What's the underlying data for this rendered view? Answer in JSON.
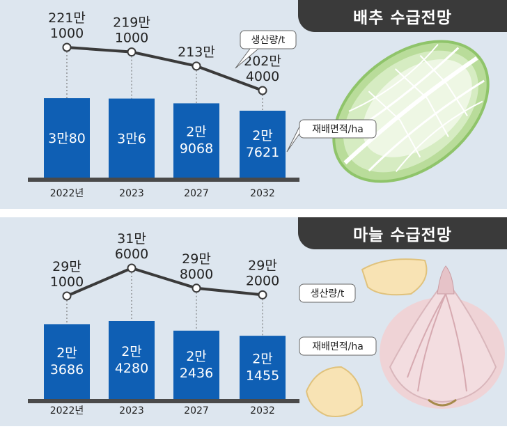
{
  "chart_data": [
    {
      "type": "bar",
      "title": "배추 수급전망",
      "categories": [
        "2022년",
        "2023",
        "2027",
        "2032"
      ],
      "series": [
        {
          "name": "재배면적/ha",
          "values": [
            30080,
            30006,
            29068,
            27621
          ],
          "labels": [
            [
              "3만80"
            ],
            [
              "3만6"
            ],
            [
              "2만",
              "9068"
            ],
            [
              "2만",
              "7621"
            ]
          ]
        },
        {
          "name": "생산량/t",
          "values": [
            2211000,
            2191000,
            2130000,
            2024000
          ],
          "labels": [
            [
              "221만",
              "1000"
            ],
            [
              "219만",
              "1000"
            ],
            [
              "213만"
            ],
            [
              "202만",
              "4000"
            ]
          ]
        }
      ],
      "colors": {
        "bar": "#0f5fb4",
        "line": "#3a3a3a",
        "title_bg": "#3a3a3a",
        "panel_bg": "#dde6ef"
      },
      "illustration": "napa-cabbage"
    },
    {
      "type": "bar",
      "title": "마늘 수급전망",
      "categories": [
        "2022년",
        "2023",
        "2027",
        "2032"
      ],
      "series": [
        {
          "name": "재배면적/ha",
          "values": [
            23686,
            24280,
            22436,
            21455
          ],
          "labels": [
            [
              "2만",
              "3686"
            ],
            [
              "2만",
              "4280"
            ],
            [
              "2만",
              "2436"
            ],
            [
              "2만",
              "1455"
            ]
          ]
        },
        {
          "name": "생산량/t",
          "values": [
            291000,
            316000,
            298000,
            292000
          ],
          "labels": [
            [
              "29만",
              "1000"
            ],
            [
              "31만",
              "6000"
            ],
            [
              "29만",
              "8000"
            ],
            [
              "29만",
              "2000"
            ]
          ]
        }
      ],
      "colors": {
        "bar": "#0f5fb4",
        "line": "#3a3a3a",
        "title_bg": "#3a3a3a",
        "panel_bg": "#dde6ef"
      },
      "illustration": "garlic"
    }
  ]
}
